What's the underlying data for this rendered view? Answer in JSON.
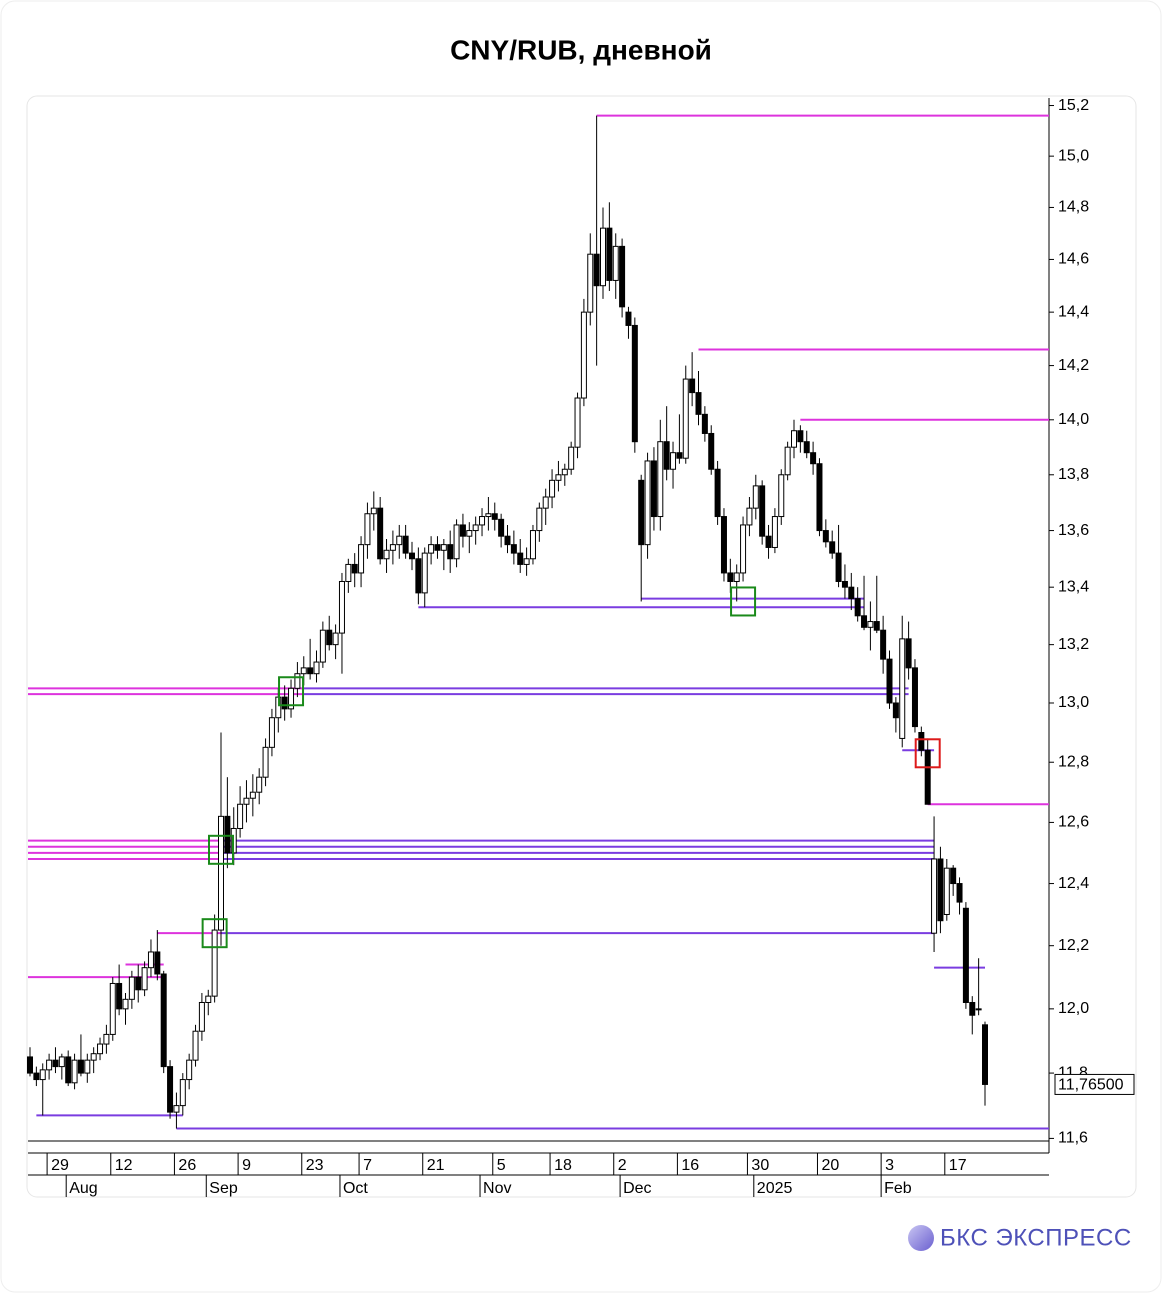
{
  "chart_data": {
    "type": "candlestick",
    "title": "CNY/RUB, дневной",
    "log_scale": true,
    "ylim": [
      11.58,
      15.23
    ],
    "yticks": [
      {
        "value": 11.6,
        "label": "11,6"
      },
      {
        "value": 11.8,
        "label": "11,8"
      },
      {
        "value": 12.0,
        "label": "12,0"
      },
      {
        "value": 12.2,
        "label": "12,2"
      },
      {
        "value": 12.4,
        "label": "12,4"
      },
      {
        "value": 12.6,
        "label": "12,6"
      },
      {
        "value": 12.8,
        "label": "12,8"
      },
      {
        "value": 13.0,
        "label": "13,0"
      },
      {
        "value": 13.2,
        "label": "13,2"
      },
      {
        "value": 13.4,
        "label": "13,4"
      },
      {
        "value": 13.6,
        "label": "13,6"
      },
      {
        "value": 13.8,
        "label": "13,8"
      },
      {
        "value": 14.0,
        "label": "14,0"
      },
      {
        "value": 14.2,
        "label": "14,2"
      },
      {
        "value": 14.4,
        "label": "14,4"
      },
      {
        "value": 14.6,
        "label": "14,6"
      },
      {
        "value": 14.8,
        "label": "14,8"
      },
      {
        "value": 15.0,
        "label": "15,0"
      },
      {
        "value": 15.2,
        "label": "15,2"
      }
    ],
    "up_color": "#ffffff",
    "down_color": "#000000",
    "categories": [
      null,
      null,
      null,
      "29",
      null,
      null,
      null,
      null,
      null,
      null,
      null,
      null,
      null,
      "12",
      null,
      null,
      null,
      null,
      null,
      null,
      null,
      null,
      null,
      "26",
      null,
      null,
      null,
      null,
      null,
      null,
      null,
      null,
      null,
      "9",
      null,
      null,
      null,
      null,
      null,
      null,
      null,
      null,
      null,
      "23",
      null,
      null,
      null,
      null,
      null,
      null,
      null,
      null,
      "7",
      null,
      null,
      null,
      null,
      null,
      null,
      null,
      null,
      null,
      "21",
      null,
      null,
      null,
      null,
      null,
      null,
      null,
      null,
      null,
      null,
      "5",
      null,
      null,
      null,
      null,
      null,
      null,
      null,
      null,
      "18",
      null,
      null,
      null,
      null,
      null,
      null,
      null,
      null,
      null,
      "2",
      null,
      null,
      null,
      null,
      null,
      null,
      null,
      null,
      null,
      "16",
      null,
      null,
      null,
      null,
      null,
      null,
      null,
      null,
      null,
      null,
      "30",
      null,
      null,
      null,
      null,
      null,
      null,
      null,
      null,
      null,
      null,
      "20",
      null,
      null,
      null,
      null,
      null,
      null,
      null,
      null,
      null,
      "3",
      null,
      null,
      null,
      null,
      null,
      null,
      null,
      null,
      null,
      "17",
      null,
      null,
      null,
      null,
      null,
      null
    ],
    "months": [
      null,
      null,
      null,
      null,
      null,
      null,
      "Aug",
      null,
      null,
      null,
      null,
      null,
      null,
      null,
      null,
      null,
      null,
      null,
      null,
      null,
      null,
      null,
      null,
      null,
      null,
      null,
      null,
      null,
      "Sep",
      null,
      null,
      null,
      null,
      null,
      null,
      null,
      null,
      null,
      null,
      null,
      null,
      null,
      null,
      null,
      null,
      null,
      null,
      null,
      null,
      "Oct",
      null,
      null,
      null,
      null,
      null,
      null,
      null,
      null,
      null,
      null,
      null,
      null,
      null,
      null,
      null,
      null,
      null,
      null,
      null,
      null,
      null,
      "Nov",
      null,
      null,
      null,
      null,
      null,
      null,
      null,
      null,
      null,
      null,
      null,
      null,
      null,
      null,
      null,
      null,
      null,
      null,
      null,
      null,
      null,
      "Dec",
      null,
      null,
      null,
      null,
      null,
      null,
      null,
      null,
      null,
      null,
      null,
      null,
      null,
      null,
      null,
      null,
      null,
      null,
      null,
      null,
      "2025",
      null,
      null,
      null,
      null,
      null,
      null,
      null,
      null,
      null,
      null,
      null,
      null,
      null,
      null,
      null,
      null,
      null,
      null,
      null,
      "Feb",
      null,
      null,
      null,
      null,
      null,
      null,
      null,
      null,
      null,
      null,
      null,
      null,
      null,
      null,
      null,
      null
    ],
    "ohlc": [
      [
        11.85,
        11.88,
        11.79,
        11.8
      ],
      [
        11.8,
        11.82,
        11.76,
        11.78
      ],
      [
        11.78,
        11.83,
        11.67,
        11.81
      ],
      [
        11.81,
        11.86,
        11.78,
        11.84
      ],
      [
        11.84,
        11.88,
        11.8,
        11.82
      ],
      [
        11.82,
        11.86,
        11.78,
        11.85
      ],
      [
        11.85,
        11.87,
        11.76,
        11.77
      ],
      [
        11.77,
        11.86,
        11.75,
        11.84
      ],
      [
        11.84,
        11.92,
        11.79,
        11.8
      ],
      [
        11.8,
        11.86,
        11.77,
        11.84
      ],
      [
        11.84,
        11.88,
        11.8,
        11.86
      ],
      [
        11.86,
        11.91,
        11.84,
        11.89
      ],
      [
        11.89,
        11.95,
        11.86,
        11.92
      ],
      [
        11.92,
        12.1,
        11.9,
        12.08
      ],
      [
        12.08,
        12.14,
        11.98,
        12.0
      ],
      [
        12.0,
        12.05,
        11.95,
        12.03
      ],
      [
        12.03,
        12.12,
        12.0,
        12.1
      ],
      [
        12.1,
        12.14,
        12.02,
        12.06
      ],
      [
        12.06,
        12.15,
        12.04,
        12.13
      ],
      [
        12.13,
        12.22,
        12.1,
        12.18
      ],
      [
        12.18,
        12.25,
        12.09,
        12.11
      ],
      [
        12.11,
        12.12,
        11.8,
        11.82
      ],
      [
        11.82,
        11.84,
        11.66,
        11.68
      ],
      [
        11.68,
        11.74,
        11.63,
        11.7
      ],
      [
        11.7,
        11.8,
        11.67,
        11.78
      ],
      [
        11.78,
        11.86,
        11.75,
        11.84
      ],
      [
        11.84,
        11.95,
        11.82,
        11.93
      ],
      [
        11.93,
        12.05,
        11.9,
        12.02
      ],
      [
        12.02,
        12.06,
        11.98,
        12.04
      ],
      [
        12.04,
        12.3,
        12.02,
        12.25
      ],
      [
        12.25,
        12.9,
        12.2,
        12.62
      ],
      [
        12.62,
        12.75,
        12.45,
        12.5
      ],
      [
        12.5,
        12.65,
        12.46,
        12.58
      ],
      [
        12.58,
        12.72,
        12.55,
        12.66
      ],
      [
        12.66,
        12.74,
        12.6,
        12.68
      ],
      [
        12.68,
        12.76,
        12.62,
        12.7
      ],
      [
        12.7,
        12.78,
        12.66,
        12.75
      ],
      [
        12.75,
        12.88,
        12.72,
        12.85
      ],
      [
        12.85,
        12.98,
        12.82,
        12.95
      ],
      [
        12.95,
        13.05,
        12.9,
        13.02
      ],
      [
        13.02,
        13.06,
        12.94,
        12.98
      ],
      [
        12.98,
        13.08,
        12.95,
        13.05
      ],
      [
        13.05,
        13.14,
        13.02,
        13.1
      ],
      [
        13.1,
        13.16,
        13.06,
        13.12
      ],
      [
        13.12,
        13.22,
        13.08,
        13.1
      ],
      [
        13.1,
        13.18,
        13.07,
        13.14
      ],
      [
        13.14,
        13.28,
        13.12,
        13.25
      ],
      [
        13.25,
        13.3,
        13.18,
        13.2
      ],
      [
        13.2,
        13.27,
        13.15,
        13.24
      ],
      [
        13.24,
        13.45,
        13.1,
        13.42
      ],
      [
        13.42,
        13.5,
        13.38,
        13.48
      ],
      [
        13.48,
        13.52,
        13.4,
        13.45
      ],
      [
        13.45,
        13.58,
        13.4,
        13.55
      ],
      [
        13.55,
        13.7,
        13.5,
        13.66
      ],
      [
        13.66,
        13.74,
        13.6,
        13.68
      ],
      [
        13.68,
        13.72,
        13.48,
        13.5
      ],
      [
        13.5,
        13.57,
        13.45,
        13.53
      ],
      [
        13.53,
        13.6,
        13.48,
        13.55
      ],
      [
        13.55,
        13.62,
        13.5,
        13.58
      ],
      [
        13.58,
        13.62,
        13.5,
        13.52
      ],
      [
        13.52,
        13.56,
        13.46,
        13.5
      ],
      [
        13.5,
        13.54,
        13.34,
        13.38
      ],
      [
        13.38,
        13.54,
        13.33,
        13.52
      ],
      [
        13.52,
        13.58,
        13.48,
        13.55
      ],
      [
        13.55,
        13.58,
        13.5,
        13.53
      ],
      [
        13.53,
        13.57,
        13.46,
        13.55
      ],
      [
        13.55,
        13.6,
        13.45,
        13.5
      ],
      [
        13.5,
        13.64,
        13.47,
        13.62
      ],
      [
        13.62,
        13.66,
        13.54,
        13.58
      ],
      [
        13.58,
        13.63,
        13.52,
        13.6
      ],
      [
        13.6,
        13.65,
        13.55,
        13.62
      ],
      [
        13.62,
        13.68,
        13.58,
        13.65
      ],
      [
        13.65,
        13.72,
        13.6,
        13.66
      ],
      [
        13.66,
        13.7,
        13.6,
        13.64
      ],
      [
        13.64,
        13.66,
        13.54,
        13.58
      ],
      [
        13.58,
        13.62,
        13.52,
        13.55
      ],
      [
        13.55,
        13.6,
        13.48,
        13.52
      ],
      [
        13.52,
        13.57,
        13.45,
        13.48
      ],
      [
        13.48,
        13.54,
        13.44,
        13.5
      ],
      [
        13.5,
        13.62,
        13.48,
        13.6
      ],
      [
        13.6,
        13.7,
        13.56,
        13.68
      ],
      [
        13.68,
        13.75,
        13.62,
        13.72
      ],
      [
        13.72,
        13.82,
        13.68,
        13.78
      ],
      [
        13.78,
        13.85,
        13.74,
        13.8
      ],
      [
        13.8,
        13.84,
        13.76,
        13.82
      ],
      [
        13.82,
        13.92,
        13.8,
        13.9
      ],
      [
        13.9,
        14.1,
        13.86,
        14.08
      ],
      [
        14.08,
        14.45,
        14.05,
        14.4
      ],
      [
        14.4,
        14.7,
        14.35,
        14.62
      ],
      [
        14.62,
        15.16,
        14.2,
        14.5
      ],
      [
        14.5,
        14.8,
        14.45,
        14.72
      ],
      [
        14.72,
        14.82,
        14.48,
        14.52
      ],
      [
        14.52,
        14.7,
        14.45,
        14.65
      ],
      [
        14.65,
        14.68,
        14.38,
        14.42
      ],
      [
        14.4,
        14.42,
        14.3,
        14.35
      ],
      [
        14.35,
        14.38,
        13.88,
        13.92
      ],
      [
        13.78,
        13.8,
        13.35,
        13.55
      ],
      [
        13.55,
        13.88,
        13.5,
        13.85
      ],
      [
        13.85,
        13.9,
        13.6,
        13.65
      ],
      [
        13.65,
        14.0,
        13.6,
        13.92
      ],
      [
        13.92,
        14.05,
        13.78,
        13.82
      ],
      [
        13.82,
        13.92,
        13.75,
        13.88
      ],
      [
        13.88,
        14.02,
        13.84,
        13.86
      ],
      [
        13.86,
        14.2,
        13.84,
        14.15
      ],
      [
        14.15,
        14.25,
        14.05,
        14.1
      ],
      [
        14.1,
        14.18,
        13.98,
        14.02
      ],
      [
        14.02,
        14.05,
        13.92,
        13.95
      ],
      [
        13.95,
        13.98,
        13.8,
        13.82
      ],
      [
        13.82,
        13.85,
        13.62,
        13.65
      ],
      [
        13.65,
        13.68,
        13.42,
        13.45
      ],
      [
        13.45,
        13.5,
        13.38,
        13.42
      ],
      [
        13.42,
        13.48,
        13.35,
        13.45
      ],
      [
        13.45,
        13.65,
        13.42,
        13.62
      ],
      [
        13.62,
        13.72,
        13.58,
        13.68
      ],
      [
        13.68,
        13.8,
        13.64,
        13.76
      ],
      [
        13.76,
        13.78,
        13.55,
        13.58
      ],
      [
        13.58,
        13.62,
        13.5,
        13.54
      ],
      [
        13.54,
        13.68,
        13.52,
        13.65
      ],
      [
        13.65,
        13.82,
        13.62,
        13.8
      ],
      [
        13.8,
        13.92,
        13.78,
        13.9
      ],
      [
        13.9,
        14.0,
        13.86,
        13.96
      ],
      [
        13.96,
        13.98,
        13.88,
        13.92
      ],
      [
        13.92,
        13.96,
        13.86,
        13.88
      ],
      [
        13.88,
        13.92,
        13.8,
        13.84
      ],
      [
        13.84,
        13.86,
        13.58,
        13.6
      ],
      [
        13.6,
        13.64,
        13.54,
        13.56
      ],
      [
        13.56,
        13.6,
        13.5,
        13.52
      ],
      [
        13.52,
        13.62,
        13.4,
        13.42
      ],
      [
        13.42,
        13.48,
        13.36,
        13.4
      ],
      [
        13.4,
        13.45,
        13.32,
        13.36
      ],
      [
        13.36,
        13.4,
        13.28,
        13.3
      ],
      [
        13.3,
        13.44,
        13.25,
        13.26
      ],
      [
        13.26,
        13.35,
        13.18,
        13.28
      ],
      [
        13.28,
        13.44,
        13.24,
        13.25
      ],
      [
        13.25,
        13.3,
        13.1,
        13.15
      ],
      [
        13.15,
        13.18,
        12.98,
        13.0
      ],
      [
        13.0,
        13.02,
        12.9,
        12.95
      ],
      [
        12.88,
        13.3,
        12.85,
        13.22
      ],
      [
        13.22,
        13.28,
        13.08,
        13.12
      ],
      [
        13.12,
        13.15,
        12.9,
        12.92
      ],
      [
        12.9,
        12.92,
        12.82,
        12.84
      ],
      [
        12.84,
        12.88,
        12.66,
        12.66
      ],
      [
        12.24,
        12.62,
        12.18,
        12.48
      ],
      [
        12.48,
        12.52,
        12.24,
        12.28
      ],
      [
        12.3,
        12.48,
        12.28,
        12.45
      ],
      [
        12.45,
        12.46,
        12.36,
        12.4
      ],
      [
        12.4,
        12.42,
        12.3,
        12.34
      ],
      [
        12.32,
        12.34,
        12.0,
        12.02
      ],
      [
        12.02,
        12.04,
        11.92,
        11.98
      ],
      [
        12.0,
        12.16,
        11.98,
        12.0
      ],
      [
        11.95,
        11.96,
        11.7,
        11.765
      ]
    ],
    "levels": [
      {
        "value": 15.16,
        "color": "#dd33dd",
        "from": 89
      },
      {
        "value": 14.26,
        "color": "#dd33dd",
        "from": 105
      },
      {
        "value": 14.0,
        "color": "#dd33dd",
        "from": 121
      },
      {
        "value": 12.66,
        "color": "#dd33dd",
        "from": 141
      },
      {
        "value": 13.05,
        "color": "#dd33dd",
        "from": 0,
        "to": 43
      },
      {
        "value": 13.03,
        "color": "#dd33dd",
        "from": 0,
        "to": 43
      },
      {
        "value": 13.05,
        "color": "#7a3ce0",
        "from": 43,
        "to": 138
      },
      {
        "value": 13.03,
        "color": "#7a3ce0",
        "from": 43,
        "to": 138
      },
      {
        "value": 12.54,
        "color": "#dd33dd",
        "from": 0,
        "to": 30
      },
      {
        "value": 12.52,
        "color": "#dd33dd",
        "from": 0,
        "to": 30
      },
      {
        "value": 12.5,
        "color": "#dd33dd",
        "from": 0,
        "to": 30
      },
      {
        "value": 12.48,
        "color": "#dd33dd",
        "from": 0,
        "to": 30
      },
      {
        "value": 12.54,
        "color": "#7a3ce0",
        "from": 30,
        "to": 142
      },
      {
        "value": 12.52,
        "color": "#7a3ce0",
        "from": 30,
        "to": 142
      },
      {
        "value": 12.5,
        "color": "#7a3ce0",
        "from": 30,
        "to": 142
      },
      {
        "value": 12.48,
        "color": "#7a3ce0",
        "from": 30,
        "to": 142
      },
      {
        "value": 12.1,
        "color": "#dd33dd",
        "from": 0,
        "to": 21
      },
      {
        "value": 12.14,
        "color": "#dd33dd",
        "from": 15,
        "to": 21
      },
      {
        "value": 12.24,
        "color": "#dd33dd",
        "from": 20,
        "to": 30
      },
      {
        "value": 12.24,
        "color": "#7a3ce0",
        "from": 30,
        "to": 142
      },
      {
        "value": 11.67,
        "color": "#7a3ce0",
        "from": 1,
        "to": 24
      },
      {
        "value": 11.63,
        "color": "#7a3ce0",
        "from": 23
      },
      {
        "value": 13.33,
        "color": "#7a3ce0",
        "from": 61,
        "to": 131
      },
      {
        "value": 13.36,
        "color": "#7a3ce0",
        "from": 96,
        "to": 131
      },
      {
        "value": 12.84,
        "color": "#7a3ce0",
        "from": 137,
        "to": 142
      },
      {
        "value": 12.13,
        "color": "#7a3ce0",
        "from": 142,
        "to": 150
      }
    ],
    "boxes": [
      {
        "index": 41,
        "value": 13.04,
        "color": "#1a8a1a"
      },
      {
        "index": 30,
        "value": 12.51,
        "color": "#1a8a1a"
      },
      {
        "index": 29,
        "value": 12.24,
        "color": "#1a8a1a"
      },
      {
        "index": 112,
        "value": 13.35,
        "color": "#1a8a1a"
      },
      {
        "index": 141,
        "value": 12.83,
        "color": "#dd1a1a"
      }
    ],
    "last_price": {
      "value": 11.765,
      "label": "11,76500"
    },
    "logo": "БКС ЭКСПРЕСС"
  }
}
